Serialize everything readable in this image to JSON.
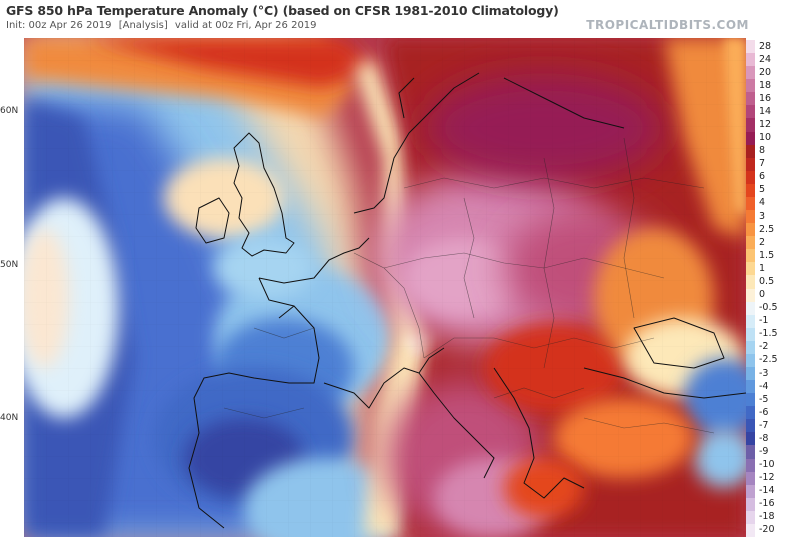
{
  "header": {
    "title": "GFS 850 hPa Temperature Anomaly (°C) (based on CFSR 1981-2010 Climatology)",
    "init": "Init: 00z Apr 26 2019",
    "analysis": "[Analysis]",
    "valid": "valid at 00z Fri, Apr 26 2019",
    "watermark": "TROPICALTIDBITS.COM"
  },
  "map": {
    "lat_labels": [
      "60N",
      "50N",
      "40N"
    ],
    "palette": {
      "ocean_cold": "#4a6fd0",
      "cold_light": "#8fc4ec",
      "neutral": "#f4e2c6",
      "warm_orange": "#f08a3c",
      "warm_red": "#c8302c",
      "hot_magenta": "#c0507a",
      "hot_pink": "#d686b0"
    }
  },
  "colorbar": {
    "levels": [
      "28",
      "24",
      "20",
      "18",
      "16",
      "14",
      "12",
      "10",
      "8",
      "7",
      "6",
      "5",
      "4",
      "3",
      "2.5",
      "2",
      "1.5",
      "1",
      "0.5",
      "0",
      "-0.5",
      "-1",
      "-1.5",
      "-2",
      "-2.5",
      "-3",
      "-4",
      "-5",
      "-6",
      "-7",
      "-8",
      "-9",
      "-10",
      "-12",
      "-14",
      "-16",
      "-18",
      "-20"
    ],
    "colors": [
      "#f3dcea",
      "#e8b9d4",
      "#d997bb",
      "#cc7aa3",
      "#bf5f8e",
      "#b2467a",
      "#a32f65",
      "#961c55",
      "#a82020",
      "#c0281e",
      "#d4331c",
      "#e4461e",
      "#f0602a",
      "#f57a34",
      "#f89442",
      "#fbad58",
      "#fcc472",
      "#fdd892",
      "#fde8b8",
      "#fdf1d8",
      "#eef4f8",
      "#d6ecf8",
      "#bfe1f5",
      "#a6d4f1",
      "#8fc4ec",
      "#78b2e6",
      "#6098de",
      "#4d80d4",
      "#4169c6",
      "#3a56b6",
      "#3644a3",
      "#6d5fa8",
      "#8a6fb2",
      "#a585c0",
      "#bfa1d0",
      "#d5bde0",
      "#e6d5ec",
      "#f2e8f4"
    ]
  }
}
